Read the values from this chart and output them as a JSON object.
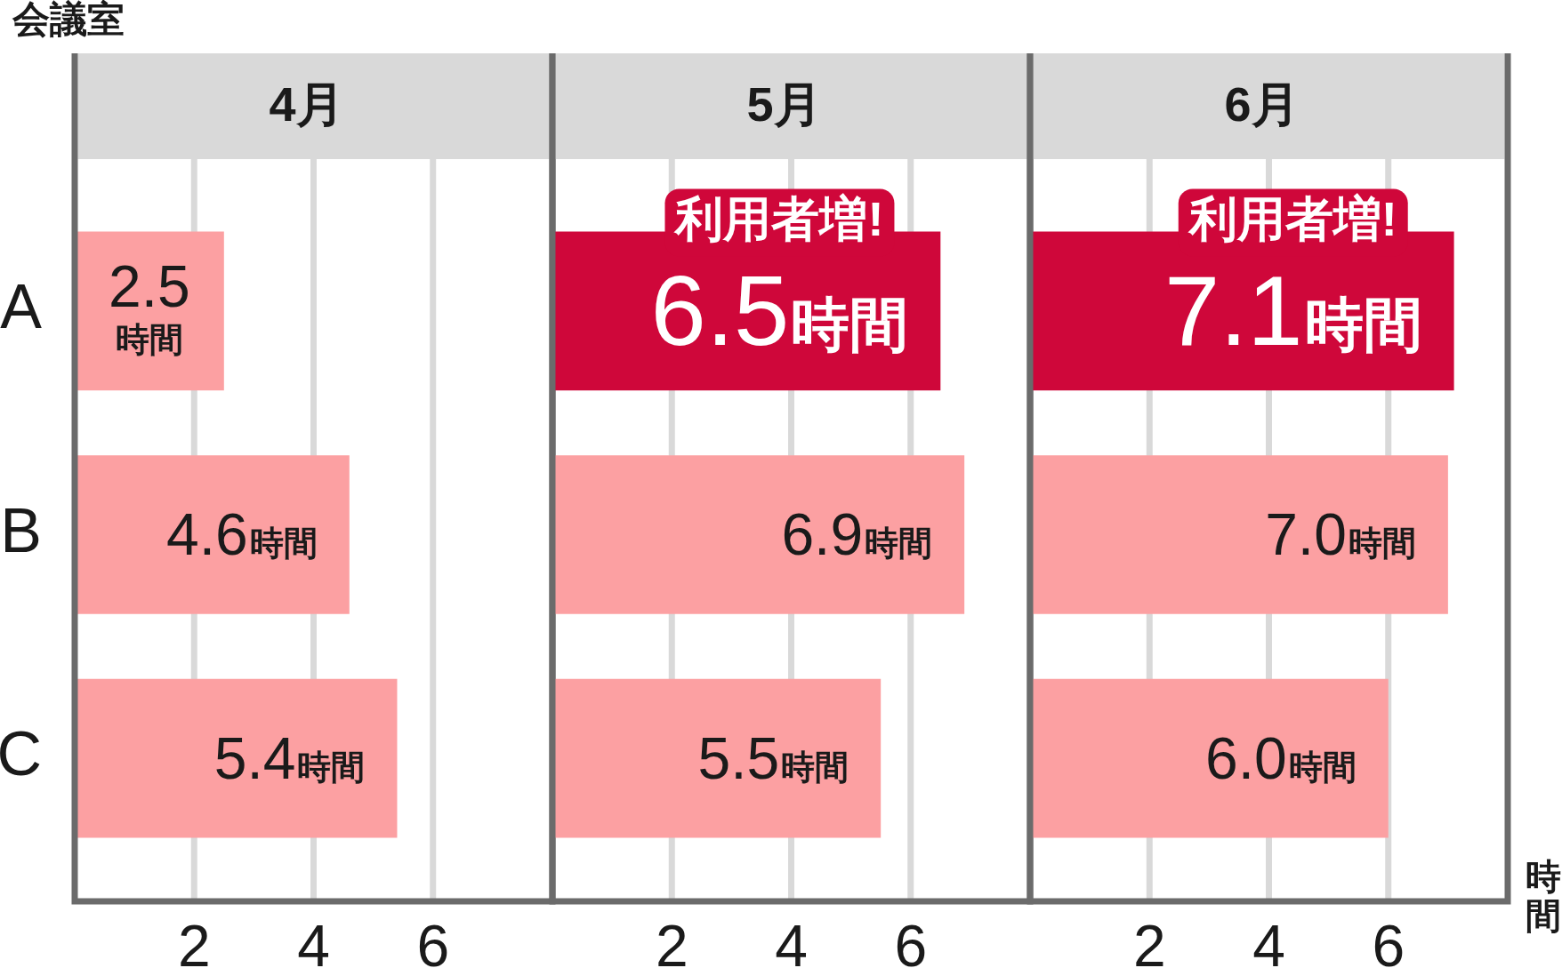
{
  "chart_data": [
    {
      "type": "bar",
      "orientation": "horizontal",
      "title": "4月",
      "ylabel": "会議室",
      "categories": [
        "A",
        "B",
        "C"
      ],
      "values": [
        2.5,
        4.6,
        5.4
      ],
      "colors": [
        "#fca0a2",
        "#fca0a2",
        "#fca0a2"
      ],
      "value_labels": [
        "2.5時間",
        "4.6時間",
        "5.4時間"
      ],
      "xlim": [
        0,
        8
      ],
      "xticks": [
        2,
        4,
        6
      ],
      "grid": "x"
    },
    {
      "type": "bar",
      "orientation": "horizontal",
      "title": "5月",
      "categories": [
        "A",
        "B",
        "C"
      ],
      "values": [
        6.5,
        6.9,
        5.5
      ],
      "colors": [
        "#cf073a",
        "#fca0a2",
        "#fca0a2"
      ],
      "value_labels": [
        "6.5時間",
        "6.9時間",
        "5.5時間"
      ],
      "annotations": [
        {
          "text": "利用者増!",
          "x": 6.5,
          "y": "A"
        }
      ],
      "xlim": [
        0,
        8
      ],
      "xticks": [
        2,
        4,
        6
      ],
      "grid": "x",
      "tick_labels": "x"
    },
    {
      "type": "bar",
      "orientation": "horizontal",
      "title": "6月",
      "xlabel": "時間",
      "categories": [
        "A",
        "B",
        "C"
      ],
      "values": [
        7.1,
        7.0,
        6.0
      ],
      "colors": [
        "#cf073a",
        "#fca0a2",
        "#fca0a2"
      ],
      "value_labels": [
        "7.1時間",
        "7.0時間",
        "6.0時間"
      ],
      "annotations": [
        {
          "text": "利用者増!",
          "x": 7.1,
          "y": "A"
        }
      ],
      "xlim": [
        0,
        8
      ],
      "xticks": [
        2,
        4,
        6
      ],
      "grid": "x",
      "tick_labels": "x"
    }
  ]
}
